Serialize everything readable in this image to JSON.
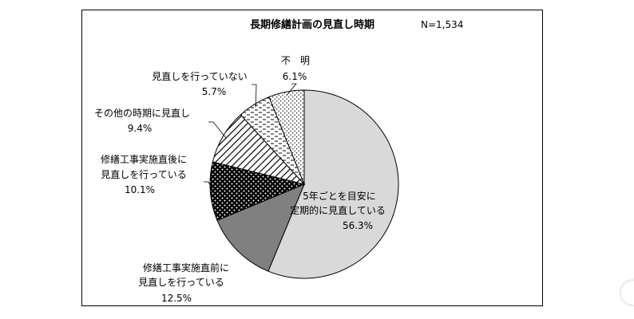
{
  "chart_data": {
    "type": "pie",
    "title": "長期修繕計画の見直し時期",
    "sample_size": "N=1,534",
    "slices": [
      {
        "label_lines": [
          "5年ごとを目安に",
          "定期的に見直している"
        ],
        "pct": "56.3%",
        "value": 56.3,
        "fill": "#d9d9d9",
        "pattern": "solid"
      },
      {
        "label_lines": [
          "修繕工事実施直前に",
          "見直しを行っている"
        ],
        "pct": "12.5%",
        "value": 12.5,
        "fill": "#808080",
        "pattern": "solid"
      },
      {
        "label_lines": [
          "修繕工事実施直後に",
          "見直しを行っている"
        ],
        "pct": "10.1%",
        "value": 10.1,
        "fill": "#000000",
        "pattern": "dots-white"
      },
      {
        "label_lines": [
          "その他の時期に見直し"
        ],
        "pct": "9.4%",
        "value": 9.4,
        "fill": "#ffffff",
        "pattern": "diagonal"
      },
      {
        "label_lines": [
          "見直しを行っていない"
        ],
        "pct": "5.7%",
        "value": 5.7,
        "fill": "#ffffff",
        "pattern": "dashes"
      },
      {
        "label_lines": [
          "不　明"
        ],
        "pct": "6.1%",
        "value": 6.1,
        "fill": "#ffffff",
        "pattern": "dots-black"
      }
    ]
  }
}
